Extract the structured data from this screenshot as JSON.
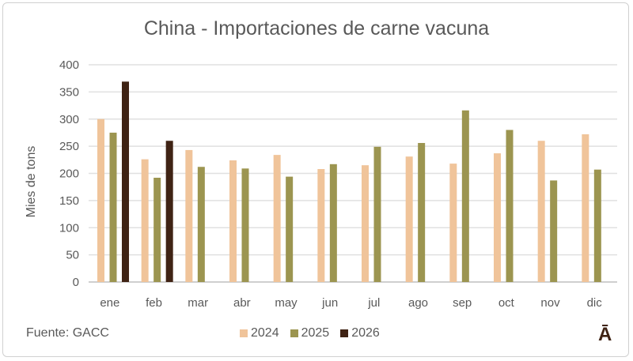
{
  "chart_data": {
    "type": "bar",
    "title": "China - Importaciones de carne vacuna",
    "ylabel": "Mies de tons",
    "xlabel": "",
    "ylim": [
      0,
      400
    ],
    "yticks": [
      0,
      50,
      100,
      150,
      200,
      250,
      300,
      350,
      400
    ],
    "grid": true,
    "legend_position": "bottom",
    "categories": [
      "ene",
      "feb",
      "mar",
      "abr",
      "may",
      "jun",
      "jul",
      "ago",
      "sep",
      "oct",
      "nov",
      "dic"
    ],
    "series": [
      {
        "name": "2024",
        "color": "#F0C49A",
        "values": [
          300,
          226,
          243,
          224,
          234,
          208,
          215,
          231,
          218,
          237,
          260,
          272
        ]
      },
      {
        "name": "2025",
        "color": "#9C9550",
        "values": [
          275,
          192,
          212,
          209,
          194,
          217,
          249,
          256,
          316,
          280,
          187,
          207
        ]
      },
      {
        "name": "2026",
        "color": "#3F2314",
        "values": [
          369,
          260,
          null,
          null,
          null,
          null,
          null,
          null,
          null,
          null,
          null,
          null
        ]
      }
    ]
  },
  "source": "Fuente: GACC",
  "logo": "Ā"
}
